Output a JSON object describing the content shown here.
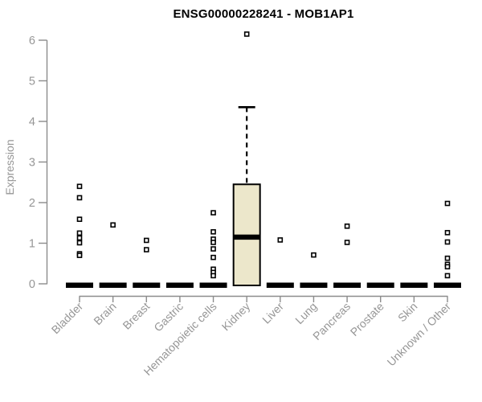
{
  "chart_data": {
    "type": "boxplot",
    "title": "ENSG00000228241 - MOB1AP1",
    "ylabel": "Expression",
    "xlabel": "",
    "ylim": [
      0,
      6.3
    ],
    "yticks": [
      0,
      1,
      2,
      3,
      4,
      5,
      6
    ],
    "grid": false,
    "legend": null,
    "categories": [
      "Bladder",
      "Brain",
      "Breast",
      "Gastric",
      "Hematopoietic cells",
      "Kidney",
      "Liver",
      "Lung",
      "Pancreas",
      "Prostate",
      "Skin",
      "Unknown / Other"
    ],
    "series": [
      {
        "category": "Bladder",
        "q1": 0,
        "median": 0,
        "q3": 0,
        "whisker_low": 0,
        "whisker_high": 0,
        "outliers": [
          2.4,
          2.12,
          1.59,
          1.25,
          1.13,
          1.01,
          0.74,
          0.7
        ]
      },
      {
        "category": "Brain",
        "q1": 0,
        "median": 0,
        "q3": 0,
        "whisker_low": 0,
        "whisker_high": 0,
        "outliers": [
          1.45
        ]
      },
      {
        "category": "Breast",
        "q1": 0,
        "median": 0,
        "q3": 0,
        "whisker_low": 0,
        "whisker_high": 0,
        "outliers": [
          1.07,
          0.84
        ]
      },
      {
        "category": "Gastric",
        "q1": 0,
        "median": 0,
        "q3": 0,
        "whisker_low": 0,
        "whisker_high": 0,
        "outliers": []
      },
      {
        "category": "Hematopoietic cells",
        "q1": 0,
        "median": 0,
        "q3": 0,
        "whisker_low": 0,
        "whisker_high": 0,
        "outliers": [
          1.75,
          1.28,
          1.1,
          1.02,
          0.86,
          0.65,
          0.36,
          0.28,
          0.2
        ]
      },
      {
        "category": "Kidney",
        "q1": 0,
        "median": 1.15,
        "q3": 2.45,
        "whisker_low": 0,
        "whisker_high": 4.35,
        "outliers": [
          6.15
        ]
      },
      {
        "category": "Liver",
        "q1": 0,
        "median": 0,
        "q3": 0,
        "whisker_low": 0,
        "whisker_high": 0,
        "outliers": [
          1.08
        ]
      },
      {
        "category": "Lung",
        "q1": 0,
        "median": 0,
        "q3": 0,
        "whisker_low": 0,
        "whisker_high": 0,
        "outliers": [
          0.71
        ]
      },
      {
        "category": "Pancreas",
        "q1": 0,
        "median": 0,
        "q3": 0,
        "whisker_low": 0,
        "whisker_high": 0,
        "outliers": [
          1.42,
          1.02
        ]
      },
      {
        "category": "Prostate",
        "q1": 0,
        "median": 0,
        "q3": 0,
        "whisker_low": 0,
        "whisker_high": 0,
        "outliers": []
      },
      {
        "category": "Skin",
        "q1": 0,
        "median": 0,
        "q3": 0,
        "whisker_low": 0,
        "whisker_high": 0,
        "outliers": []
      },
      {
        "category": "Unknown / Other",
        "q1": 0,
        "median": 0,
        "q3": 0,
        "whisker_low": 0,
        "whisker_high": 0,
        "outliers": [
          1.98,
          1.26,
          1.03,
          0.63,
          0.48,
          0.42,
          0.2
        ]
      }
    ],
    "colors": {
      "box_fill": "#ECE7CB",
      "box_border": "#000000",
      "median": "#000000",
      "whisker": "#000000",
      "outlier_border": "#000000",
      "outlier_fill": "#FFFFFF",
      "axis": "#8C8C8C",
      "tick_label": "#969696",
      "title": "#000000"
    }
  }
}
